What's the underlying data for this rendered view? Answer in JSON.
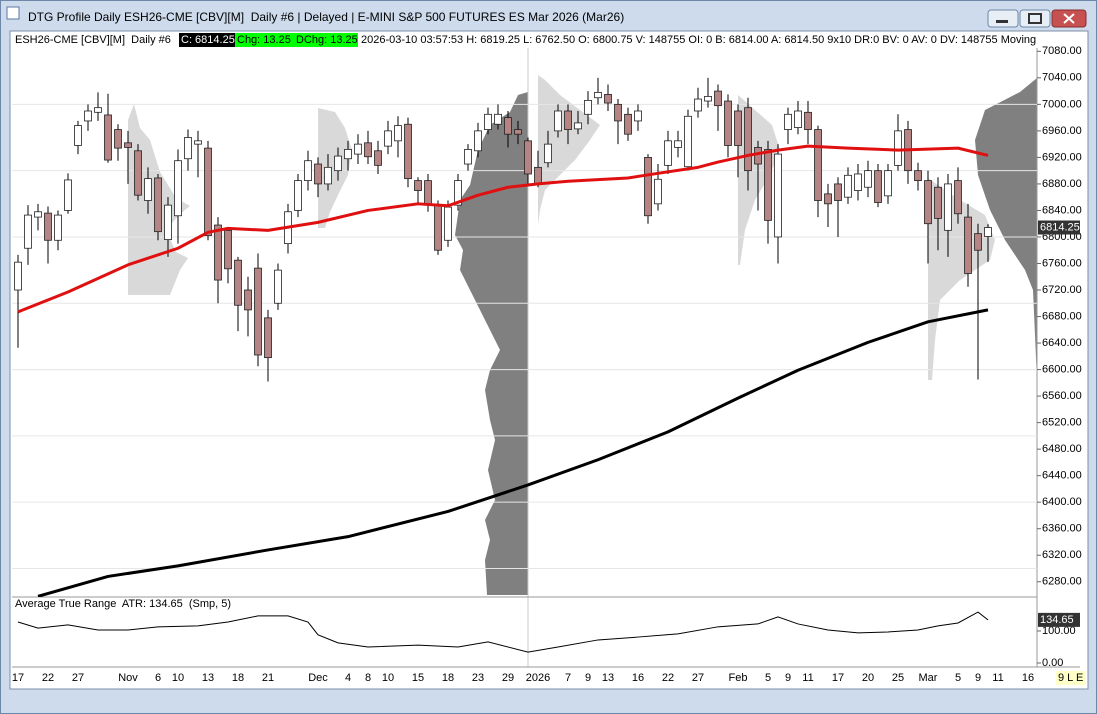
{
  "window": {
    "title": "DTG Profile Daily ESH26-CME [CBV][M]  Daily #6 | Delayed | E-MINI S&P 500 FUTURES ES Mar 2026 (Mar26)",
    "info": {
      "symbol": "ESH26-CME [CBV][M]  Daily #6",
      "close": "C: 6814.25",
      "chg": "Chg: 13.25",
      "dchg": "DChg: 13.25",
      "details": "2026-03-10 03:57:53 H: 6819.25 L: 6762.50 O: 6800.75 V: 148755 OI: 0 B: 6814.00 A: 6814.50 9x10 DR:0 BV: 0 AV: 0 DV: 148755 Moving"
    },
    "corner": "9 L E"
  },
  "chart_data": [
    {
      "type": "candlestick",
      "categories": [
        "17",
        null,
        null,
        "22",
        null,
        null,
        "27",
        null,
        null,
        null,
        null,
        "Nov",
        null,
        null,
        "6",
        null,
        "10",
        null,
        null,
        "13",
        null,
        null,
        "18",
        null,
        null,
        "21",
        null,
        null,
        null,
        null,
        "Dec",
        null,
        null,
        "4",
        null,
        "8",
        null,
        "10",
        null,
        null,
        "15",
        null,
        null,
        "18",
        null,
        null,
        "23",
        null,
        null,
        "29",
        null,
        null,
        "2026",
        null,
        null,
        "7",
        null,
        "9",
        null,
        "13",
        null,
        null,
        "16",
        null,
        null,
        "22",
        null,
        null,
        "27",
        null,
        null,
        null,
        "Feb",
        null,
        null,
        "5",
        null,
        "9",
        null,
        "11",
        null,
        null,
        "17",
        null,
        null,
        "20",
        null,
        null,
        "25",
        null,
        null,
        "Mar",
        null,
        null,
        "5",
        null,
        "9",
        null,
        "11",
        null,
        null,
        "16"
      ],
      "open": [
        6720,
        6783,
        6830,
        6836,
        6795,
        6840,
        6938,
        6975,
        6988,
        6984,
        6962,
        6942,
        6930,
        6855,
        6889,
        6796,
        6832,
        6918,
        6940,
        6934,
        6818,
        6810,
        6765,
        6720,
        6753,
        6678,
        6700,
        6790,
        6840,
        6885,
        6910,
        6880,
        6900,
        6918,
        6925,
        6942,
        6930,
        6937,
        6945,
        6970,
        6885,
        6885,
        6848,
        6795,
        6848,
        6910,
        6930,
        6962,
        6970,
        6980,
        6962,
        6945,
        6905,
        6912,
        6960,
        6990,
        6963,
        6985,
        7010,
        7015,
        7000,
        6985,
        6975,
        6920,
        6850,
        6908,
        6935,
        6906,
        6990,
        7005,
        7020,
        7005,
        6990,
        6995,
        6935,
        6932,
        6800,
        6962,
        6965,
        6988,
        6962,
        6865,
        6880,
        6860,
        6870,
        6875,
        6900,
        6862,
        6908,
        6962,
        6900,
        6885,
        6875,
        6810,
        6885,
        6830,
        6805,
        6800.75,
        null,
        null,
        null,
        null
      ],
      "high": [
        6773,
        6848,
        6850,
        6846,
        6840,
        6896,
        6975,
        7000,
        7018,
        7016,
        6970,
        6960,
        6940,
        6905,
        6895,
        6860,
        6932,
        6962,
        6960,
        6945,
        6830,
        6815,
        6770,
        6740,
        6775,
        6690,
        6760,
        6850,
        6895,
        6930,
        6920,
        6925,
        6935,
        6945,
        6955,
        6960,
        6945,
        6975,
        6982,
        6980,
        6890,
        6895,
        6855,
        6855,
        6895,
        6940,
        6972,
        6995,
        7000,
        6990,
        6975,
        6950,
        6930,
        6960,
        7000,
        7000,
        6990,
        7020,
        7040,
        7030,
        7008,
        6995,
        7000,
        6925,
        6910,
        6960,
        6960,
        6992,
        7025,
        7040,
        7030,
        7015,
        7000,
        7010,
        6945,
        6945,
        6940,
        6995,
        7005,
        7005,
        6968,
        6880,
        6890,
        6905,
        6910,
        6915,
        6910,
        6910,
        6985,
        6975,
        6912,
        6900,
        6890,
        6895,
        6905,
        6850,
        6820,
        6819.25,
        null,
        null,
        null,
        null
      ],
      "low": [
        6633,
        6758,
        6810,
        6760,
        6780,
        6835,
        6925,
        6960,
        6975,
        6912,
        6915,
        6880,
        6855,
        6835,
        6795,
        6770,
        6790,
        6900,
        6890,
        6795,
        6700,
        6730,
        6658,
        6650,
        6605,
        6582,
        6690,
        6775,
        6830,
        6870,
        6860,
        6870,
        6885,
        6900,
        6910,
        6910,
        6895,
        6925,
        6920,
        6875,
        6850,
        6838,
        6773,
        6785,
        6840,
        6900,
        6920,
        6955,
        6962,
        6935,
        6940,
        6880,
        6875,
        6905,
        6950,
        6940,
        6955,
        6970,
        7000,
        6990,
        6940,
        6945,
        6960,
        6820,
        6840,
        6895,
        6920,
        6900,
        6980,
        6995,
        6960,
        6920,
        6890,
        6870,
        6840,
        6790,
        6760,
        6940,
        6955,
        6940,
        6830,
        6815,
        6800,
        6850,
        6855,
        6860,
        6845,
        6850,
        6900,
        6880,
        6870,
        6760,
        6780,
        6770,
        6820,
        6725,
        6585,
        6762.5,
        null,
        null,
        null,
        null
      ],
      "close": [
        6762,
        6833,
        6838,
        6795,
        6833,
        6886,
        6968,
        6990,
        6995,
        6916,
        6934,
        6935,
        6863,
        6888,
        6808,
        6848,
        6915,
        6950,
        6945,
        6802,
        6735,
        6752,
        6697,
        6690,
        6622,
        6618,
        6750,
        6838,
        6885,
        6915,
        6880,
        6905,
        6922,
        6932,
        6940,
        6921,
        6908,
        6960,
        6968,
        6888,
        6870,
        6848,
        6780,
        6845,
        6885,
        6932,
        6960,
        6985,
        6985,
        6955,
        6955,
        6895,
        6880,
        6940,
        6990,
        6962,
        6972,
        7006,
        7018,
        7002,
        6975,
        6955,
        6990,
        6832,
        6887,
        6945,
        6945,
        6982,
        7008,
        7012,
        6998,
        6938,
        6938,
        6900,
        6910,
        6825,
        6925,
        6985,
        6990,
        6962,
        6855,
        6850,
        6855,
        6893,
        6895,
        6900,
        6852,
        6900,
        6960,
        6900,
        6885,
        6820,
        6828,
        6880,
        6835,
        6745,
        6780,
        6814.25,
        null,
        null,
        null,
        null
      ],
      "up_color": "#ffffff",
      "down_color": "#b58484",
      "series": [
        {
          "color": "#e01010",
          "x": [
            0,
            5,
            11,
            16,
            19,
            21,
            25,
            30,
            35,
            40,
            43,
            46,
            49,
            52,
            55,
            61,
            64,
            68,
            70,
            73,
            76,
            79,
            83,
            88,
            94,
            97
          ],
          "values": [
            6687,
            6717,
            6758,
            6783,
            6807,
            6813,
            6810,
            6822,
            6840,
            6850,
            6847,
            6863,
            6875,
            6880,
            6884,
            6889,
            6896,
            6905,
            6913,
            6923,
            6931,
            6937,
            6934,
            6931,
            6934,
            6923
          ]
        },
        {
          "color": "#000000",
          "x": [
            2,
            9,
            16,
            25,
            33,
            43,
            51,
            58,
            65,
            72,
            78,
            85,
            91,
            97
          ],
          "values": [
            6258,
            6288,
            6304,
            6328,
            6348,
            6386,
            6426,
            6464,
            6506,
            6557,
            6599,
            6641,
            6672,
            6690
          ]
        }
      ],
      "ylim": [
        6257,
        7085
      ],
      "yticks": [
        {
          "value": 6280,
          "label": "6280.00"
        },
        {
          "value": 6320,
          "label": "6320.00"
        },
        {
          "value": 6360,
          "label": "6360.00"
        },
        {
          "value": 6400,
          "label": "6400.00"
        },
        {
          "value": 6440,
          "label": "6440.00"
        },
        {
          "value": 6480,
          "label": "6480.00"
        },
        {
          "value": 6520,
          "label": "6520.00"
        },
        {
          "value": 6560,
          "label": "6560.00"
        },
        {
          "value": 6600,
          "label": "6600.00"
        },
        {
          "value": 6640,
          "label": "6640.00"
        },
        {
          "value": 6680,
          "label": "6680.00"
        },
        {
          "value": 6720,
          "label": "6720.00"
        },
        {
          "value": 6760,
          "label": "6760.00"
        },
        {
          "value": 6800,
          "label": "6800.00"
        },
        {
          "value": 6840,
          "label": "6840.00"
        },
        {
          "value": 6880,
          "label": "6880.00"
        },
        {
          "value": 6920,
          "label": "6920.00"
        },
        {
          "value": 6960,
          "label": "6960.00"
        },
        {
          "value": 7000,
          "label": "7000.00"
        },
        {
          "value": 7040,
          "label": "7040.00"
        },
        {
          "value": 7080,
          "label": "7080.00"
        }
      ],
      "grid_lines": [
        6300,
        6400,
        6500,
        6600,
        6700,
        6800,
        6900,
        7000
      ]
    },
    {
      "type": "line",
      "title": "Average True Range  ATR: 134.65  (Smp, 5)",
      "color": "#000000",
      "x": [
        0,
        2,
        5,
        8,
        11,
        14,
        18,
        21,
        24,
        27,
        29,
        30,
        32,
        35,
        40,
        44,
        47,
        51,
        54,
        58,
        62,
        66,
        70,
        74,
        76,
        78,
        81,
        84,
        87,
        90,
        92,
        94,
        96,
        97
      ],
      "values": [
        128,
        109,
        119,
        103,
        103,
        113,
        116,
        128,
        147,
        147,
        128,
        88,
        63,
        50,
        56,
        50,
        66,
        34,
        50,
        72,
        81,
        91,
        113,
        122,
        144,
        122,
        103,
        94,
        97,
        103,
        116,
        125,
        159,
        134.65
      ],
      "ylim": [
        -12.5,
        203
      ],
      "yticks": [
        {
          "value": 0,
          "label": "0.00"
        },
        {
          "value": 100,
          "label": "100.00"
        }
      ]
    }
  ]
}
